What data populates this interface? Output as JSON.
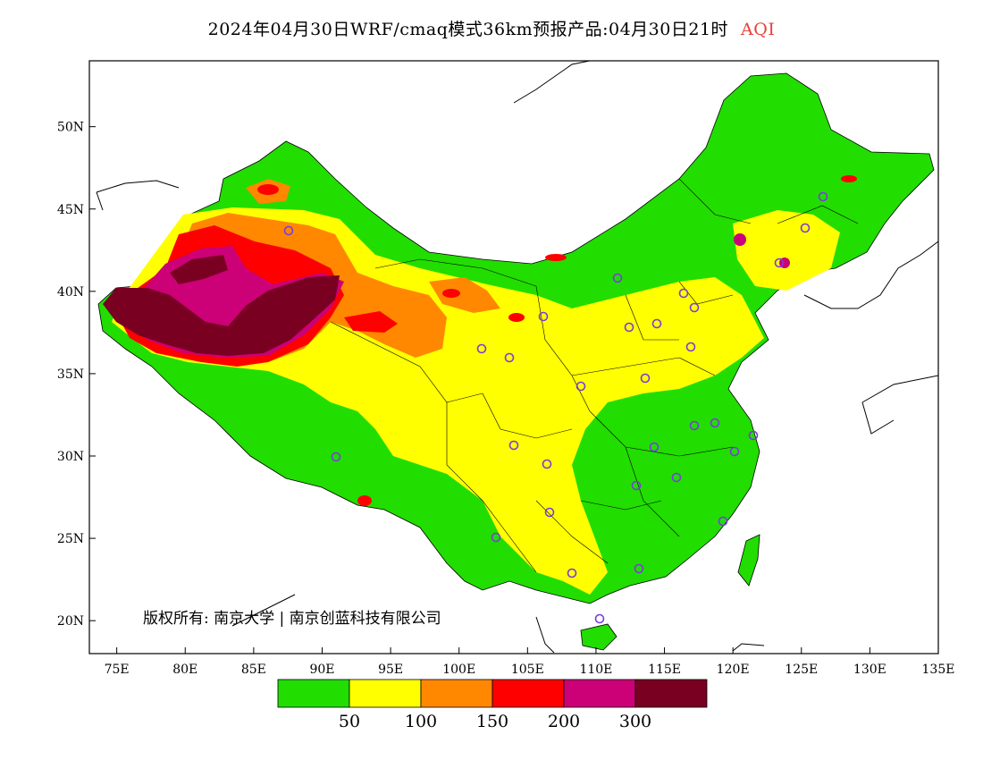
{
  "title": {
    "main": "2024年04月30日WRF/cmaq模式36km预报产品:04月30日21时",
    "variable": "AQI",
    "variable_color": "#e8403a"
  },
  "map": {
    "lat_labels": [
      "50N",
      "45N",
      "40N",
      "35N",
      "30N",
      "25N",
      "20N"
    ],
    "lat_values": [
      50,
      45,
      40,
      35,
      30,
      25,
      20
    ],
    "lon_labels": [
      "75E",
      "80E",
      "85E",
      "90E",
      "95E",
      "100E",
      "105E",
      "110E",
      "115E",
      "120E",
      "125E",
      "130E",
      "135E"
    ],
    "lon_values": [
      75,
      80,
      85,
      90,
      95,
      100,
      105,
      110,
      115,
      120,
      125,
      130,
      135
    ],
    "lon_range": [
      73,
      135
    ],
    "lat_range": [
      18,
      54
    ],
    "copyright": "版权所有: 南京大学 | 南京创蓝科技有限公司"
  },
  "legend": {
    "colors": [
      "#22dd00",
      "#ffff00",
      "#ff8800",
      "#ff0000",
      "#cc0077",
      "#7a0022"
    ],
    "thresholds": [
      "50",
      "100",
      "150",
      "200",
      "300"
    ]
  }
}
